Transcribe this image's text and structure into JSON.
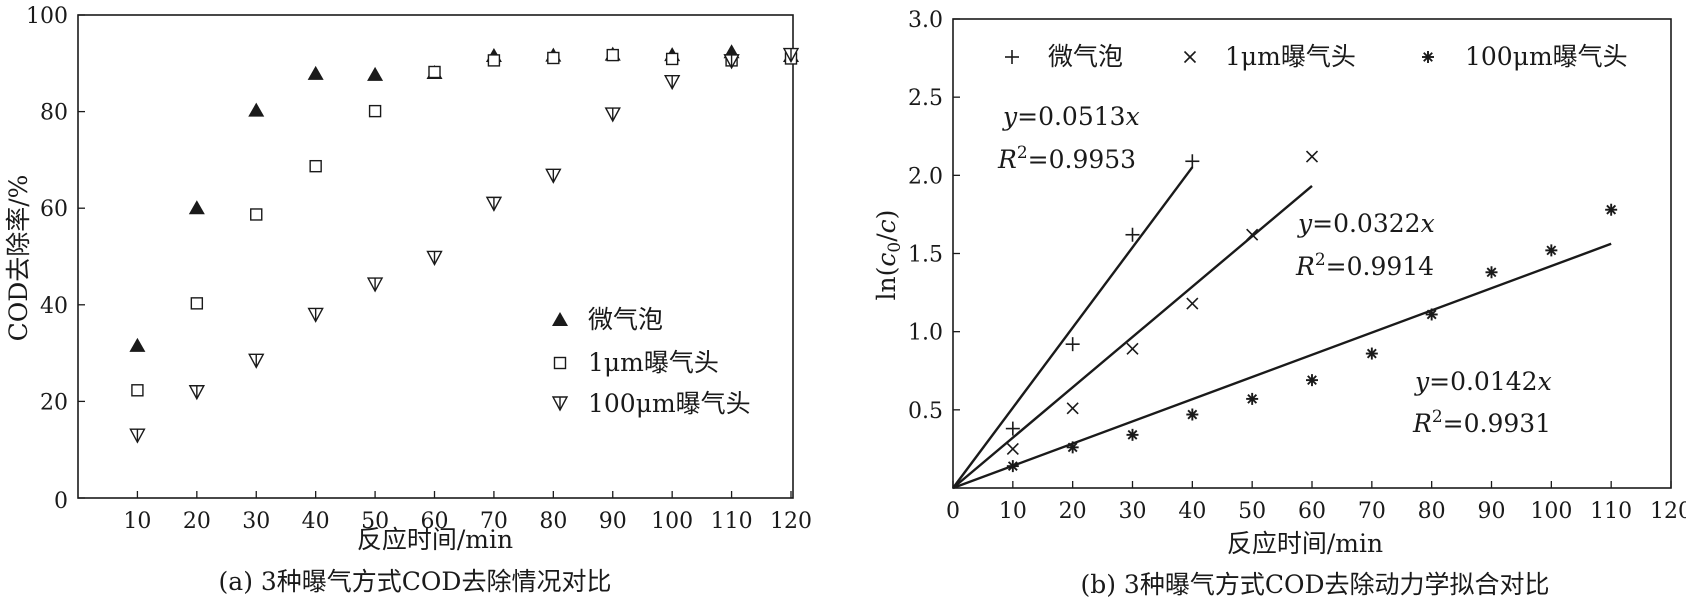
{
  "chart_data": [
    {
      "type": "scatter",
      "caption": "(a) 3种曝气方式COD去除情况对比",
      "xlabel": "反应时间/min",
      "ylabel": "COD去除率/%",
      "xlim": [
        0,
        120
      ],
      "ylim": [
        0,
        100
      ],
      "xticks": [
        10,
        20,
        30,
        40,
        50,
        60,
        70,
        80,
        90,
        100,
        110,
        120
      ],
      "yticks": [
        0,
        20,
        40,
        60,
        80,
        100
      ],
      "legend_position": "lower-right",
      "grid": false,
      "series": [
        {
          "name": "微气泡",
          "marker": "filled-triangle",
          "x": [
            10,
            20,
            30,
            40,
            50,
            60,
            70,
            80,
            90,
            100,
            110,
            120
          ],
          "y": [
            31.5,
            60,
            80.2,
            87.8,
            87.6,
            88.0,
            91.5,
            91.6,
            91.8,
            91.7,
            92.3,
            91.5
          ]
        },
        {
          "name": "1μm曝气头",
          "marker": "open-square",
          "x": [
            10,
            20,
            30,
            40,
            50,
            60,
            70,
            80,
            90,
            100,
            110,
            120
          ],
          "y": [
            22.3,
            40.3,
            58.7,
            68.7,
            80.1,
            88.2,
            90.6,
            91.1,
            91.7,
            90.9,
            90.6,
            91.0
          ]
        },
        {
          "name": "100μm曝气头",
          "marker": "down-triangle-arrow",
          "x": [
            10,
            20,
            30,
            40,
            50,
            60,
            70,
            80,
            90,
            100,
            110,
            120
          ],
          "y": [
            13.0,
            22.0,
            28.5,
            38.0,
            44.3,
            49.8,
            61.0,
            66.8,
            79.5,
            86.2,
            90.5,
            91.8
          ]
        }
      ]
    },
    {
      "type": "scatter",
      "caption": "(b) 3种曝气方式COD去除动力学拟合对比",
      "xlabel": "反应时间/min",
      "ylabel": "ln(c0/c)",
      "xlim": [
        0,
        120
      ],
      "ylim": [
        0,
        3.0
      ],
      "xticks": [
        0,
        10,
        20,
        30,
        40,
        50,
        60,
        70,
        80,
        90,
        100,
        110,
        120
      ],
      "yticks": [
        0.5,
        1.0,
        1.5,
        2.0,
        2.5,
        3.0
      ],
      "legend_position": "top",
      "grid": false,
      "series": [
        {
          "name": "微气泡",
          "marker": "plus",
          "x": [
            10,
            20,
            30,
            40
          ],
          "y": [
            0.38,
            0.92,
            1.62,
            2.09
          ],
          "fit": {
            "slope": 0.0513,
            "x_end": 40,
            "equation": "y=0.0513x",
            "r2": "R2=0.9953"
          }
        },
        {
          "name": "1μm曝气头",
          "marker": "cross",
          "x": [
            10,
            20,
            30,
            40,
            50,
            60
          ],
          "y": [
            0.25,
            0.51,
            0.89,
            1.18,
            1.62,
            2.12
          ],
          "fit": {
            "slope": 0.0322,
            "x_end": 60,
            "equation": "y=0.0322x",
            "r2": "R2=0.9914"
          }
        },
        {
          "name": "100μm曝气头",
          "marker": "asterisk",
          "x": [
            10,
            20,
            30,
            40,
            50,
            60,
            70,
            80,
            90,
            100,
            110
          ],
          "y": [
            0.14,
            0.26,
            0.34,
            0.47,
            0.57,
            0.69,
            0.86,
            1.11,
            1.38,
            1.52,
            1.78
          ],
          "fit": {
            "slope": 0.0142,
            "x_end": 110,
            "equation": "y=0.0142x",
            "r2": "R2=0.9931"
          }
        }
      ]
    }
  ]
}
